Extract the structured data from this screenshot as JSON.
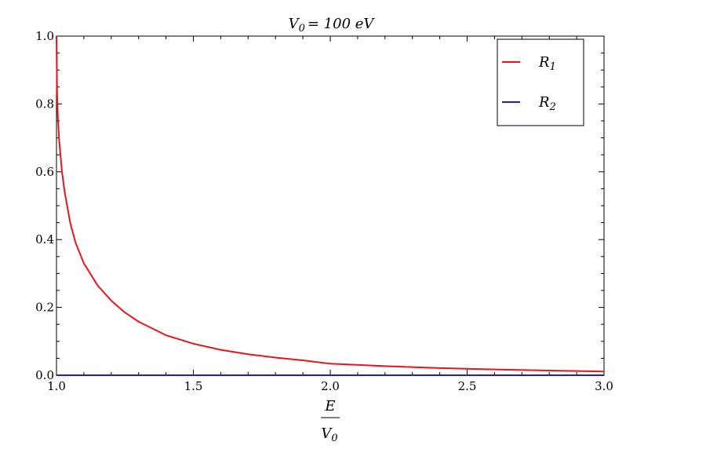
{
  "chart_data": {
    "type": "line",
    "title": {
      "base": "V",
      "sub": "0",
      "rest": "= 100 eV"
    },
    "xlabel": {
      "numerator": "E",
      "denominator_base": "V",
      "denominator_sub": "0"
    },
    "ylabel": "",
    "xlim": [
      1.0,
      3.0
    ],
    "ylim": [
      0.0,
      1.0
    ],
    "x_ticks": [
      1.0,
      1.5,
      2.0,
      2.5,
      3.0
    ],
    "x_tick_labels": [
      "1.0",
      "1.5",
      "2.0",
      "2.5",
      "3.0"
    ],
    "y_ticks": [
      0.0,
      0.2,
      0.4,
      0.6,
      0.8,
      1.0
    ],
    "y_tick_labels": [
      "0.0",
      "0.2",
      "0.4",
      "0.6",
      "0.8",
      "1.0"
    ],
    "grid": false,
    "legend_position": "top-right",
    "series": [
      {
        "name": "R1",
        "label_base": "R",
        "label_sub": "1",
        "color": "#e8141c",
        "x": [
          1.0,
          1.002,
          1.005,
          1.01,
          1.02,
          1.03,
          1.05,
          1.07,
          1.1,
          1.15,
          1.2,
          1.25,
          1.3,
          1.4,
          1.5,
          1.6,
          1.7,
          1.8,
          1.9,
          2.0,
          2.2,
          2.4,
          2.6,
          2.8,
          3.0
        ],
        "y": [
          1.0,
          0.84,
          0.76,
          0.69,
          0.6,
          0.54,
          0.45,
          0.39,
          0.33,
          0.265,
          0.22,
          0.185,
          0.158,
          0.118,
          0.093,
          0.075,
          0.062,
          0.052,
          0.044,
          0.034,
          0.027,
          0.021,
          0.017,
          0.014,
          0.011
        ]
      },
      {
        "name": "R2",
        "label_base": "R",
        "label_sub": "2",
        "color": "#1f1fbf",
        "x": [
          1.0,
          3.0
        ],
        "y": [
          0.0,
          0.0
        ]
      }
    ]
  }
}
